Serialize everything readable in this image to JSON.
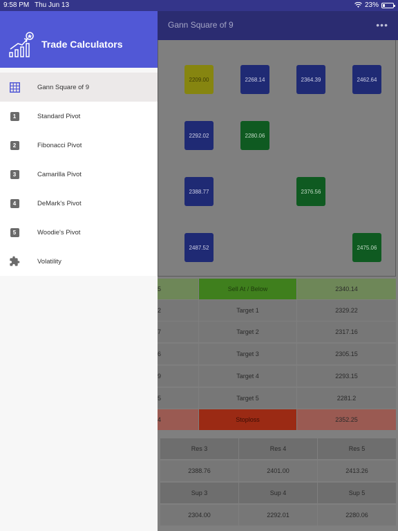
{
  "status_bar": {
    "time": "9:58 PM",
    "date": "Thu Jun 13",
    "battery": "23%",
    "battery_level": 0.23
  },
  "app_bar": {
    "title": "Gann Square of 9",
    "more_label": "•••"
  },
  "drawer": {
    "app_name": "Trade Calculators",
    "items": [
      {
        "label": "Gann Square of 9",
        "icon": "grid-icon",
        "active": true
      },
      {
        "label": "Standard Pivot",
        "icon": "number-1-icon",
        "num": "1"
      },
      {
        "label": "Fibonacci Pivot",
        "icon": "number-2-icon",
        "num": "2"
      },
      {
        "label": "Camarilla Pivot",
        "icon": "number-3-icon",
        "num": "3"
      },
      {
        "label": "DeMark's Pivot",
        "icon": "number-4-icon",
        "num": "4"
      },
      {
        "label": "Woodie's Pivot",
        "icon": "number-5-icon",
        "num": "5"
      },
      {
        "label": "Volatility",
        "icon": "puzzle-icon"
      }
    ]
  },
  "gann_cells": [
    {
      "value": "2209.00",
      "color": "yellow"
    },
    {
      "value": "2268.14",
      "color": "blue"
    },
    {
      "value": "2364.39",
      "color": "blue"
    },
    {
      "value": "2462.64",
      "color": "blue"
    },
    {
      "value": "2292.02",
      "color": "blue"
    },
    {
      "value": "2280.06",
      "color": "green"
    },
    {
      "value": "2388.77",
      "color": "blue"
    },
    {
      "value": "2376.56",
      "color": "green"
    },
    {
      "value": "2487.52",
      "color": "blue"
    },
    {
      "value": "2475.06",
      "color": "green"
    }
  ],
  "targets": [
    {
      "left": "5",
      "label": "Sell At / Below",
      "value": "2340.14"
    },
    {
      "left": "2",
      "label": "Target 1",
      "value": "2329.22"
    },
    {
      "left": "7",
      "label": "Target 2",
      "value": "2317.16"
    },
    {
      "left": "6",
      "label": "Target 3",
      "value": "2305.15"
    },
    {
      "left": "9",
      "label": "Target 4",
      "value": "2293.15"
    },
    {
      "left": "5",
      "label": "Target 5",
      "value": "2281.2"
    },
    {
      "left": "4",
      "label": "Stoploss",
      "value": "2352.25"
    }
  ],
  "resistance": {
    "headers": [
      "Res 3",
      "Res 4",
      "Res 5"
    ],
    "values": [
      "2388.76",
      "2401.00",
      "2413.26"
    ]
  },
  "support": {
    "headers": [
      "Sup 3",
      "Sup 4",
      "Sup 5"
    ],
    "values": [
      "2304.00",
      "2292.01",
      "2280.06"
    ]
  },
  "colors": {
    "drawer_header": "#5158d6",
    "app_bar": "#2b2c71",
    "sell_row_label": "#3f7f1d",
    "sell_row_side": "#6e8758",
    "stoploss_label": "#9b2a14",
    "stoploss_side": "#9a5a52"
  }
}
